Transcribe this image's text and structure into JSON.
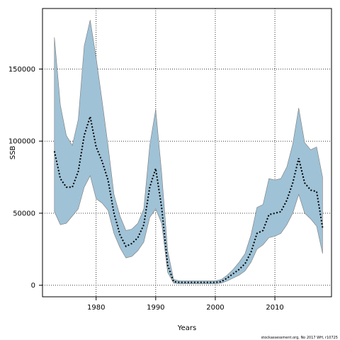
{
  "chart_data": {
    "type": "area",
    "title": "",
    "xlabel": "Years",
    "ylabel": "SSB",
    "xlim": [
      1971.0,
      2019.5
    ],
    "ylim": [
      -8000,
      192000
    ],
    "x_ticks": [
      1980,
      1990,
      2000,
      2010
    ],
    "x_tick_labels": [
      "1980",
      "1990",
      "2000",
      "2010"
    ],
    "y_ticks": [
      0,
      50000,
      100000,
      150000
    ],
    "y_tick_labels": [
      "0",
      "50000",
      "100000",
      "150000"
    ],
    "grid": true,
    "legend": "none",
    "series": [
      {
        "style": "confidence-band",
        "x": [
          1973,
          1974,
          1975,
          1976,
          1977,
          1978,
          1979,
          1980,
          1981,
          1982,
          1983,
          1984,
          1985,
          1986,
          1987,
          1988,
          1989,
          1990,
          1991,
          1992,
          1993,
          1994,
          1995,
          1996,
          1997,
          1998,
          1999,
          2000,
          2001,
          2002,
          2003,
          2004,
          2005,
          2006,
          2007,
          2008,
          2009,
          2010,
          2011,
          2012,
          2013,
          2014,
          2015,
          2016,
          2017,
          2018
        ],
        "upper": [
          172000,
          125000,
          104000,
          97000,
          115000,
          166000,
          184000,
          158000,
          128000,
          97000,
          63000,
          48000,
          38000,
          39000,
          43000,
          53000,
          97000,
          122000,
          78000,
          24000,
          4000,
          3000,
          3000,
          3000,
          3000,
          3000,
          3000,
          3000,
          4000,
          7000,
          11000,
          16000,
          22000,
          35000,
          54000,
          56000,
          74000,
          73000,
          74000,
          82000,
          98000,
          123000,
          99000,
          94000,
          96000,
          75000
        ],
        "lower": [
          51000,
          42000,
          43000,
          48000,
          53000,
          68000,
          76000,
          60000,
          57000,
          52000,
          36000,
          26000,
          19000,
          20000,
          24000,
          30000,
          47000,
          53000,
          43000,
          9000,
          1500,
          1000,
          1000,
          1000,
          1000,
          1000,
          1000,
          1000,
          1500,
          3000,
          5000,
          7000,
          10000,
          16000,
          25000,
          28000,
          33000,
          34000,
          36000,
          42000,
          50000,
          63000,
          50000,
          46000,
          41000,
          22000
        ]
      },
      {
        "style": "dotted-line",
        "x": [
          1973,
          1974,
          1975,
          1976,
          1977,
          1978,
          1979,
          1980,
          1981,
          1982,
          1983,
          1984,
          1985,
          1986,
          1987,
          1988,
          1989,
          1990,
          1991,
          1992,
          1993,
          1994,
          1995,
          1996,
          1997,
          1998,
          1999,
          2000,
          2001,
          2002,
          2003,
          2004,
          2005,
          2006,
          2007,
          2008,
          2009,
          2010,
          2011,
          2012,
          2013,
          2014,
          2015,
          2016,
          2017,
          2018
        ],
        "values": [
          93000,
          74000,
          68000,
          68000,
          79000,
          104000,
          117000,
          96000,
          86000,
          73000,
          50000,
          35000,
          27000,
          29000,
          33000,
          42000,
          68000,
          81000,
          54000,
          14000,
          2500,
          2000,
          2000,
          2000,
          2000,
          2000,
          2000,
          2000,
          2500,
          5000,
          8000,
          11000,
          15000,
          23000,
          36000,
          38000,
          49000,
          50000,
          51000,
          59000,
          71000,
          88000,
          71000,
          66000,
          65000,
          40000
        ]
      }
    ],
    "colors": {
      "band_fill": "#9fc2d6",
      "band_stroke": "#7a7a7a",
      "line": "#000000",
      "grid": "#000000"
    }
  },
  "caption": "stockassessment.org, No 2017 WH, r10725"
}
